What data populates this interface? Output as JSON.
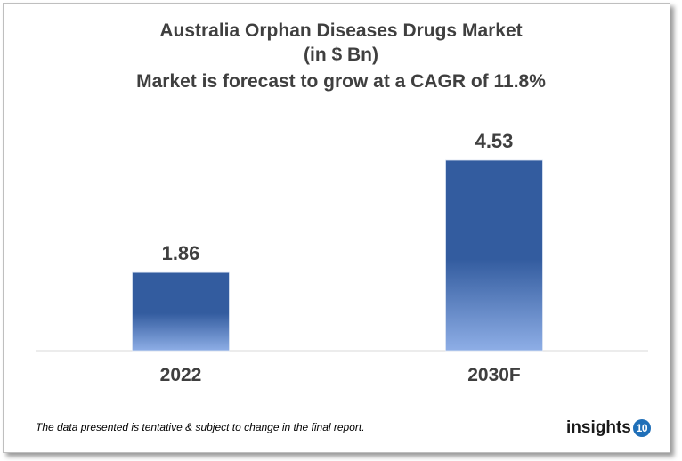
{
  "chart_data": {
    "type": "bar",
    "title": [
      "Australia Orphan Diseases Drugs Market",
      "(in $ Bn)",
      "Market is forecast to grow at a CAGR of 11.8%"
    ],
    "categories": [
      "2022",
      "2030F"
    ],
    "values": [
      1.86,
      4.53
    ],
    "data_labels": [
      "1.86",
      "4.53"
    ],
    "ylim": [
      0,
      4.53
    ],
    "grid": false,
    "legend": "none",
    "colors": {
      "bar_top": "#335c9f",
      "bar_bottom": "#8eaee6",
      "text": "#3f3f3f"
    }
  },
  "footnote": "The data presented is tentative & subject to change in the final report.",
  "logo": {
    "text": "insights",
    "badge": "10"
  }
}
